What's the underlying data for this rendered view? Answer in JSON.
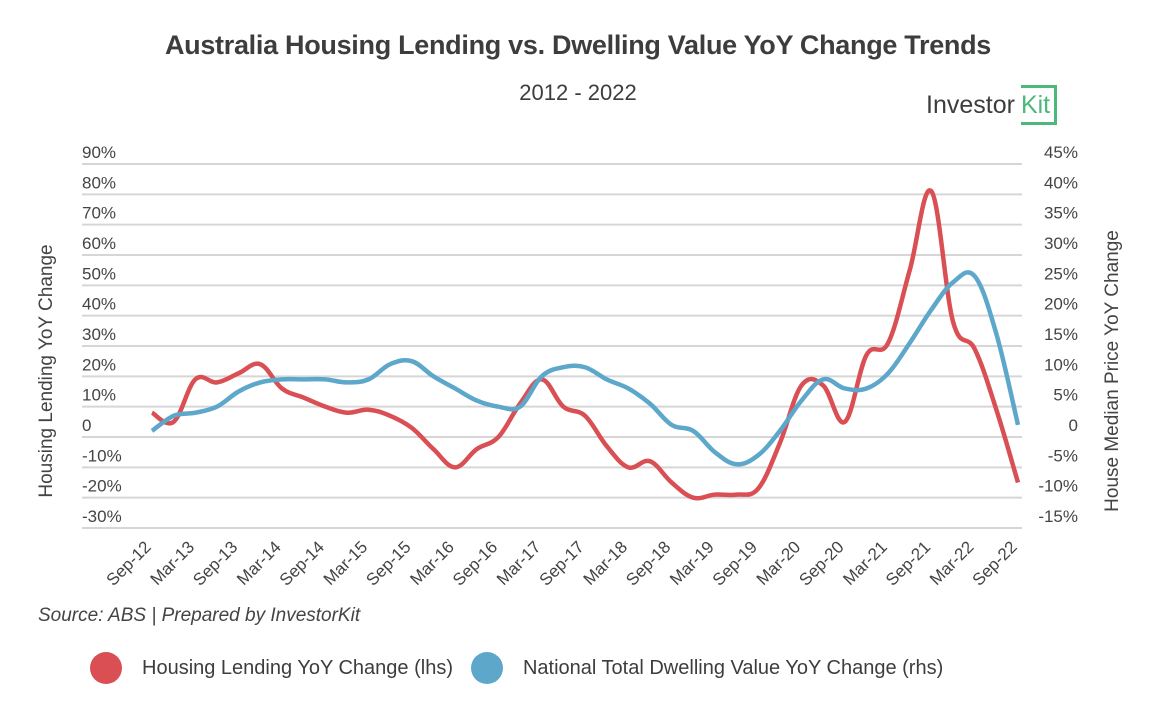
{
  "header": {
    "title": "Australia Housing Lending vs. Dwelling Value YoY Change Trends",
    "subtitle": "2012 - 2022",
    "logo_text": "Investor",
    "logo_kit": "Kit"
  },
  "footer": {
    "source": "Source: ABS | Prepared by InvestorKit"
  },
  "colors": {
    "lending": "#d94f54",
    "dwelling": "#5da7cb",
    "grid": "#d6d6d6",
    "text": "#444444",
    "logo_green": "#4cb87a"
  },
  "chart_data": {
    "type": "line",
    "title": "Australia Housing Lending vs. Dwelling Value YoY Change Trends",
    "subtitle": "2012 - 2022",
    "ylabel": "Housing Lending YoY Change",
    "y2label": "House Median Price YoY Change",
    "ylim": [
      -30,
      90
    ],
    "y2lim": [
      -15,
      45
    ],
    "yticks": [
      "90%",
      "80%",
      "70%",
      "60%",
      "50%",
      "40%",
      "30%",
      "20%",
      "10%",
      "0",
      "-10%",
      "-20%",
      "-30%"
    ],
    "y2ticks": [
      "45%",
      "40%",
      "35%",
      "30%",
      "25%",
      "20%",
      "15%",
      "10%",
      "5%",
      "0",
      "-5%",
      "-10%",
      "-15%"
    ],
    "xtick_labels": [
      "Sep-12",
      "Mar-13",
      "Sep-13",
      "Mar-14",
      "Sep-14",
      "Mar-15",
      "Sep-15",
      "Mar-16",
      "Sep-16",
      "Mar-17",
      "Sep-17",
      "Mar-18",
      "Sep-18",
      "Mar-19",
      "Sep-19",
      "Mar-20",
      "Sep-20",
      "Mar-21",
      "Sep-21",
      "Mar-22",
      "Sep-22"
    ],
    "x": [
      "Sep-12",
      "Dec-12",
      "Mar-13",
      "Jun-13",
      "Sep-13",
      "Dec-13",
      "Mar-14",
      "Jun-14",
      "Sep-14",
      "Dec-14",
      "Mar-15",
      "Jun-15",
      "Sep-15",
      "Dec-15",
      "Mar-16",
      "Jun-16",
      "Sep-16",
      "Dec-16",
      "Mar-17",
      "Jun-17",
      "Sep-17",
      "Dec-17",
      "Mar-18",
      "Jun-18",
      "Sep-18",
      "Dec-18",
      "Mar-19",
      "Jun-19",
      "Sep-19",
      "Dec-19",
      "Mar-20",
      "Jun-20",
      "Sep-20",
      "Dec-20",
      "Mar-21",
      "Jun-21",
      "Sep-21",
      "Dec-21",
      "Mar-22",
      "Jun-22",
      "Sep-22"
    ],
    "grid": true,
    "legend_position": "bottom",
    "series": [
      {
        "name": "Housing Lending YoY Change (lhs)",
        "axis": "left",
        "values": [
          8,
          5,
          19,
          18,
          21,
          24,
          16,
          13,
          10,
          8,
          9,
          7,
          3,
          -4,
          -10,
          -4,
          0,
          11,
          19,
          10,
          7,
          -3,
          -10,
          -8,
          -15,
          -20,
          -19,
          -19,
          -17,
          -2,
          17,
          17,
          5,
          27,
          31,
          55,
          81,
          38,
          29,
          9,
          -15
        ]
      },
      {
        "name": "National Total Dwelling Value YoY Change (rhs)",
        "axis": "right",
        "values": [
          1,
          3.5,
          4,
          5,
          7.5,
          9,
          9.5,
          9.5,
          9.5,
          9,
          9.5,
          12,
          12.5,
          10,
          8,
          6,
          5,
          5,
          10,
          11.5,
          11.5,
          9.5,
          8,
          5.5,
          2,
          1,
          -2.5,
          -4.5,
          -3,
          1,
          6,
          9.5,
          8,
          8,
          10.5,
          15.5,
          21,
          25.5,
          26.5,
          17,
          2
        ]
      }
    ]
  }
}
